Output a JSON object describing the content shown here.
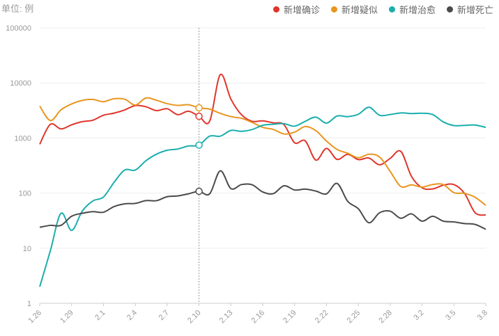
{
  "unit_label": "单位: 例",
  "legend": [
    {
      "label": "新增确诊",
      "color": "#e0352b"
    },
    {
      "label": "新增疑似",
      "color": "#e8961e"
    },
    {
      "label": "新增治愈",
      "color": "#1aaeae"
    },
    {
      "label": "新增死亡",
      "color": "#4a4a4a"
    }
  ],
  "chart_data": {
    "type": "line",
    "y_scale": "log",
    "ylim": [
      1,
      100000
    ],
    "y_ticks": [
      "1",
      "10",
      "100",
      "1000",
      "10000",
      "100000"
    ],
    "x_tick_labels": [
      "1.26",
      "1.29",
      "2.1",
      "2.4",
      "2.7",
      "2.10",
      "2.13",
      "2.16",
      "2.19",
      "2.22",
      "2.25",
      "2.28",
      "3.2",
      "3.5",
      "3.8"
    ],
    "x": [
      "1.26",
      "1.27",
      "1.28",
      "1.29",
      "1.30",
      "1.31",
      "2.1",
      "2.2",
      "2.3",
      "2.4",
      "2.5",
      "2.6",
      "2.7",
      "2.8",
      "2.9",
      "2.10",
      "2.11",
      "2.12",
      "2.13",
      "2.14",
      "2.15",
      "2.16",
      "2.17",
      "2.18",
      "2.19",
      "2.20",
      "2.21",
      "2.22",
      "2.23",
      "2.24",
      "2.25",
      "2.26",
      "2.27",
      "2.28",
      "2.29",
      "3.1",
      "3.2",
      "3.3",
      "3.4",
      "3.5",
      "3.6",
      "3.7",
      "3.8"
    ],
    "highlight_x": "2.10",
    "grid": true,
    "series": [
      {
        "name": "新增确诊",
        "color": "#e0352b",
        "values": [
          769,
          1771,
          1459,
          1737,
          1982,
          2102,
          2590,
          2829,
          3235,
          3887,
          3694,
          3143,
          3399,
          2656,
          3062,
          2478,
          2015,
          14108,
          5090,
          2641,
          2009,
          2048,
          1886,
          1749,
          820,
          889,
          397,
          648,
          409,
          508,
          406,
          433,
          327,
          427,
          573,
          202,
          125,
          119,
          139,
          143,
          99,
          44,
          40
        ]
      },
      {
        "name": "新增疑似",
        "color": "#e8961e",
        "values": [
          3806,
          2077,
          3248,
          4148,
          4812,
          5019,
          4562,
          5173,
          5072,
          3971,
          5328,
          4833,
          4214,
          3916,
          4008,
          3536,
          3342,
          2807,
          2450,
          2277,
          1918,
          1563,
          1432,
          1185,
          1277,
          1614,
          1361,
          882,
          620,
          530,
          439,
          508,
          452,
          248,
          132,
          141,
          129,
          143,
          143,
          102,
          99,
          84,
          60
        ]
      },
      {
        "name": "新增治愈",
        "color": "#1aaeae",
        "values": [
          2,
          9,
          43,
          21,
          47,
          72,
          85,
          157,
          262,
          262,
          387,
          510,
          600,
          632,
          716,
          744,
          1081,
          1081,
          1373,
          1323,
          1425,
          1701,
          1779,
          1824,
          1640,
          2009,
          2393,
          1865,
          2509,
          2444,
          2700,
          3622,
          2589,
          2667,
          2854,
          2779,
          2814,
          2664,
          1964,
          1681,
          1698,
          1722,
          1558
        ]
      },
      {
        "name": "新增死亡",
        "color": "#4a4a4a",
        "values": [
          24,
          26,
          26,
          38,
          43,
          46,
          45,
          57,
          64,
          65,
          73,
          73,
          86,
          89,
          97,
          108,
          97,
          254,
          121,
          143,
          142,
          105,
          98,
          136,
          114,
          118,
          109,
          97,
          150,
          71,
          52,
          29,
          44,
          47,
          35,
          42,
          31,
          38,
          31,
          30,
          28,
          27,
          22
        ]
      }
    ]
  }
}
